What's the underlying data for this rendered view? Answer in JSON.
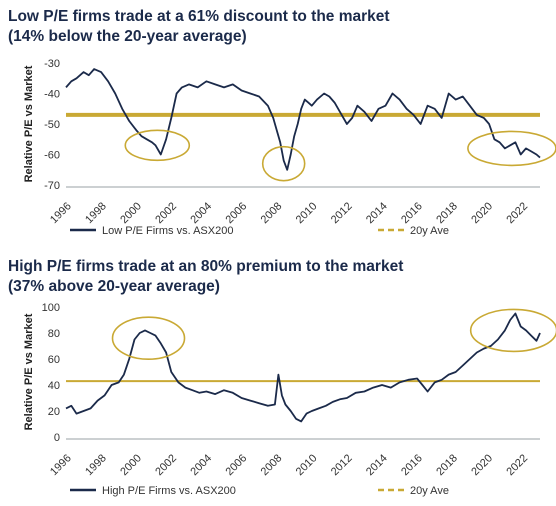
{
  "chart_data": [
    {
      "type": "line",
      "title": "Low P/E firms trade at a 61% discount to the market",
      "subtitle": "(14% below the 20-year average)",
      "ylabel": "Relative P/E vs Market",
      "ylim": [
        -70,
        -30
      ],
      "yticks": [
        -30,
        -40,
        -50,
        -60,
        -70
      ],
      "xlim": [
        1996,
        2023
      ],
      "xticks": [
        "1996",
        "1998",
        "2000",
        "2002",
        "2004",
        "2006",
        "2008",
        "2010",
        "2012",
        "2014",
        "2016",
        "2018",
        "2020",
        "2022"
      ],
      "series": [
        {
          "name": "Low P/E Firms vs. ASX200",
          "color": "#1b2a4a",
          "x": [
            1996.0,
            1996.3,
            1996.6,
            1997.0,
            1997.3,
            1997.6,
            1998.0,
            1998.4,
            1998.8,
            1999.2,
            1999.6,
            2000.0,
            2000.3,
            2000.6,
            2000.9,
            2001.1,
            2001.4,
            2001.7,
            2002.0,
            2002.3,
            2002.6,
            2003.0,
            2003.5,
            2004.0,
            2004.5,
            2005.0,
            2005.5,
            2006.0,
            2006.5,
            2007.0,
            2007.5,
            2007.8,
            2008.0,
            2008.2,
            2008.4,
            2008.6,
            2008.8,
            2009.0,
            2009.2,
            2009.4,
            2009.6,
            2009.8,
            2010.0,
            2010.3,
            2010.7,
            2011.0,
            2011.3,
            2011.6,
            2012.0,
            2012.3,
            2012.6,
            2013.0,
            2013.4,
            2013.8,
            2014.2,
            2014.6,
            2015.0,
            2015.4,
            2015.8,
            2016.2,
            2016.6,
            2017.0,
            2017.4,
            2017.8,
            2018.2,
            2018.6,
            2019.0,
            2019.4,
            2019.8,
            2020.1,
            2020.4,
            2020.7,
            2021.0,
            2021.3,
            2021.6,
            2021.9,
            2022.2,
            2022.5,
            2022.8,
            2023.0
          ],
          "y": [
            -38,
            -36,
            -35,
            -33,
            -34,
            -32,
            -33,
            -36,
            -40,
            -45,
            -49,
            -52,
            -54,
            -55,
            -56,
            -57,
            -60,
            -55,
            -48,
            -40,
            -38,
            -37,
            -38,
            -36,
            -37,
            -38,
            -37,
            -39,
            -40,
            -41,
            -44,
            -48,
            -52,
            -56,
            -62,
            -65,
            -60,
            -54,
            -50,
            -45,
            -42,
            -43,
            -44,
            -42,
            -40,
            -41,
            -43,
            -46,
            -50,
            -48,
            -44,
            -46,
            -49,
            -45,
            -44,
            -40,
            -42,
            -45,
            -47,
            -50,
            -44,
            -45,
            -48,
            -40,
            -42,
            -41,
            -44,
            -47,
            -48,
            -50,
            -55,
            -56,
            -58,
            -57,
            -56,
            -60,
            -58,
            -59,
            -60,
            -61
          ]
        },
        {
          "name": "20y Ave",
          "color": "#c9a934",
          "style": "dashed",
          "value": -47
        }
      ],
      "annotations": [
        "ellipse around 2001",
        "ellipse around 2008-2009",
        "ellipse around 2021-2022"
      ]
    },
    {
      "type": "line",
      "title": "High P/E firms trade at an 80% premium to the market",
      "subtitle": "(37% above 20-year average)",
      "ylabel": "Relative P/E vs Market",
      "ylim": [
        0,
        100
      ],
      "yticks": [
        0,
        20,
        40,
        60,
        80,
        100
      ],
      "xlim": [
        1996,
        2023
      ],
      "xticks": [
        "1996",
        "1998",
        "2000",
        "2002",
        "2004",
        "2006",
        "2008",
        "2010",
        "2012",
        "2014",
        "2016",
        "2018",
        "2020",
        "2022"
      ],
      "series": [
        {
          "name": "High P/E Firms vs. ASX200",
          "color": "#1b2a4a",
          "x": [
            1996.0,
            1996.3,
            1996.6,
            1997.0,
            1997.4,
            1997.8,
            1998.2,
            1998.6,
            1999.0,
            1999.3,
            1999.6,
            1999.9,
            2000.2,
            2000.5,
            2000.8,
            2001.1,
            2001.4,
            2001.7,
            2002.0,
            2002.4,
            2002.8,
            2003.2,
            2003.6,
            2004.0,
            2004.5,
            2005.0,
            2005.5,
            2006.0,
            2006.5,
            2007.0,
            2007.5,
            2007.9,
            2008.1,
            2008.3,
            2008.5,
            2008.8,
            2009.1,
            2009.4,
            2009.7,
            2010.0,
            2010.4,
            2010.8,
            2011.2,
            2011.6,
            2012.0,
            2012.5,
            2013.0,
            2013.5,
            2014.0,
            2014.5,
            2015.0,
            2015.5,
            2016.0,
            2016.3,
            2016.6,
            2017.0,
            2017.4,
            2017.8,
            2018.2,
            2018.6,
            2019.0,
            2019.4,
            2019.8,
            2020.2,
            2020.6,
            2021.0,
            2021.3,
            2021.6,
            2021.9,
            2022.2,
            2022.5,
            2022.8,
            2023.0
          ],
          "y": [
            22,
            24,
            18,
            20,
            22,
            28,
            32,
            40,
            42,
            48,
            60,
            75,
            80,
            82,
            80,
            78,
            72,
            65,
            50,
            42,
            38,
            36,
            34,
            35,
            33,
            36,
            34,
            30,
            28,
            26,
            24,
            25,
            48,
            32,
            25,
            20,
            14,
            12,
            18,
            20,
            22,
            24,
            27,
            29,
            30,
            34,
            35,
            38,
            40,
            38,
            42,
            44,
            45,
            40,
            35,
            42,
            44,
            48,
            50,
            55,
            60,
            65,
            68,
            70,
            75,
            82,
            90,
            95,
            85,
            82,
            78,
            74,
            80
          ]
        },
        {
          "name": "20y Ave",
          "color": "#c9a934",
          "style": "dashed",
          "value": 43
        }
      ],
      "annotations": [
        "ellipse around 2000-2001",
        "ellipse around 2021-2022"
      ]
    }
  ]
}
